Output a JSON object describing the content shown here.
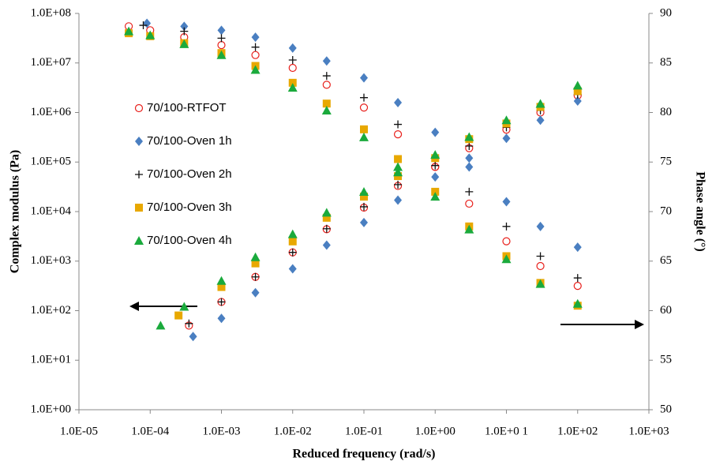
{
  "chart_data": {
    "type": "scatter",
    "xlabel": "Reduced frequency (rad/s)",
    "ylabel": "Complex modulus (Pa)",
    "y2label": "Phase angle (°)",
    "xscale": "log",
    "yscale": "log",
    "xlim": [
      1e-05,
      1000
    ],
    "xticks": [
      {
        "value": 1e-05,
        "label": "1.0E-05"
      },
      {
        "value": 0.0001,
        "label": "1.0E-04"
      },
      {
        "value": 0.001,
        "label": "1.0E-03"
      },
      {
        "value": 0.01,
        "label": "1.0E-02"
      },
      {
        "value": 0.1,
        "label": "1.0E-01"
      },
      {
        "value": 1,
        "label": "1.0E+00"
      },
      {
        "value": 10,
        "label": "1.0E+0 1"
      },
      {
        "value": 100,
        "label": "1.0E+02"
      },
      {
        "value": 1000,
        "label": "1.0E+03"
      }
    ],
    "ylim": [
      1,
      100000000
    ],
    "yticks": [
      {
        "value": 1,
        "label": "1.0E+00"
      },
      {
        "value": 10,
        "label": "1.0E+01"
      },
      {
        "value": 100,
        "label": "1.0E+02"
      },
      {
        "value": 1000,
        "label": "1.0E+03"
      },
      {
        "value": 10000,
        "label": "1.0E+04"
      },
      {
        "value": 100000,
        "label": "1.0E+05"
      },
      {
        "value": 1000000,
        "label": "1.0E+06"
      },
      {
        "value": 10000000,
        "label": "1.0E+07"
      },
      {
        "value": 100000000,
        "label": "1.0E+08"
      }
    ],
    "y2lim": [
      50,
      90
    ],
    "y2ticks": [
      50,
      55,
      60,
      65,
      70,
      75,
      80,
      85,
      90
    ],
    "series": [
      {
        "name": "70/100-RTFOT",
        "color": "#e8201c",
        "marker": "circle",
        "x": [
          0.00035,
          0.001,
          0.003,
          0.01,
          0.03,
          0.1,
          0.3,
          1,
          3,
          10,
          30,
          100
        ],
        "values": [
          50,
          150,
          480,
          1500,
          4400,
          12000,
          33000,
          80000,
          190000,
          450000,
          1000000,
          2200000
        ],
        "x2": [
          5e-05,
          0.0001,
          0.0003,
          0.001,
          0.003,
          0.01,
          0.03,
          0.1,
          0.3,
          1,
          3,
          10,
          30,
          100
        ],
        "y2_values": [
          88.7,
          88.3,
          87.6,
          86.8,
          85.8,
          84.5,
          82.8,
          80.5,
          77.8,
          74.5,
          70.8,
          67,
          64.5,
          62.5
        ]
      },
      {
        "name": "70/100-Oven 1h",
        "color": "#4a7fc1",
        "marker": "diamond",
        "x": [
          0.0004,
          0.001,
          0.003,
          0.01,
          0.03,
          0.1,
          0.3,
          1,
          3,
          10,
          30,
          100
        ],
        "values": [
          30,
          70,
          230,
          700,
          2100,
          6000,
          17000,
          50000,
          120000,
          300000,
          700000,
          1700000
        ],
        "x2": [
          9e-05,
          0.0003,
          0.001,
          0.003,
          0.01,
          0.03,
          0.1,
          0.3,
          1,
          3,
          10,
          30,
          100
        ],
        "y2_values": [
          89,
          88.7,
          88.3,
          87.6,
          86.5,
          85.2,
          83.5,
          81,
          78,
          74.5,
          71,
          68.5,
          66.4
        ]
      },
      {
        "name": "70/100-Oven 2h",
        "color": "#111111",
        "marker": "plus",
        "x": [
          0.00035,
          0.001,
          0.003,
          0.01,
          0.03,
          0.1,
          0.3,
          1,
          3,
          10,
          30,
          100
        ],
        "values": [
          55,
          150,
          480,
          1500,
          4500,
          12500,
          35000,
          85000,
          210000,
          500000,
          1100000,
          2300000
        ],
        "x2": [
          8e-05,
          0.0003,
          0.001,
          0.003,
          0.01,
          0.03,
          0.1,
          0.3,
          1,
          3,
          10,
          30,
          100
        ],
        "y2_values": [
          88.8,
          88.2,
          87.5,
          86.6,
          85.3,
          83.7,
          81.5,
          78.8,
          75.5,
          72,
          68.5,
          65.5,
          63.3
        ]
      },
      {
        "name": "70/100-Oven 3h",
        "color": "#e8a800",
        "marker": "square",
        "x": [
          0.00025,
          0.001,
          0.003,
          0.01,
          0.03,
          0.1,
          0.3,
          1,
          3,
          10,
          30,
          100
        ],
        "values": [
          80,
          300,
          900,
          2500,
          7500,
          20000,
          52000,
          120000,
          290000,
          600000,
          1300000,
          2700000
        ],
        "x2": [
          5e-05,
          0.0001,
          0.0003,
          0.001,
          0.003,
          0.01,
          0.03,
          0.1,
          0.3,
          1,
          3,
          10,
          30,
          100
        ],
        "y2_values": [
          88,
          87.7,
          87,
          86,
          84.7,
          83,
          80.9,
          78.3,
          75.3,
          72,
          68.5,
          65.5,
          62.8,
          60.5
        ]
      },
      {
        "name": "70/100-Oven 4h",
        "color": "#1aaa3c",
        "marker": "triangle",
        "x": [
          0.00014,
          0.0003,
          0.001,
          0.003,
          0.01,
          0.03,
          0.1,
          0.3,
          1,
          3,
          10,
          30,
          100
        ],
        "values": [
          50,
          120,
          400,
          1200,
          3500,
          9500,
          25000,
          62000,
          140000,
          320000,
          700000,
          1500000,
          3500000
        ],
        "x2": [
          5e-05,
          0.0001,
          0.0003,
          0.001,
          0.003,
          0.01,
          0.03,
          0.1,
          0.3,
          1,
          3,
          10,
          30,
          100
        ],
        "y2_values": [
          88.2,
          87.8,
          86.9,
          85.8,
          84.3,
          82.5,
          80.2,
          77.5,
          74.5,
          71.5,
          68.2,
          65.2,
          62.7,
          60.7
        ]
      }
    ]
  }
}
